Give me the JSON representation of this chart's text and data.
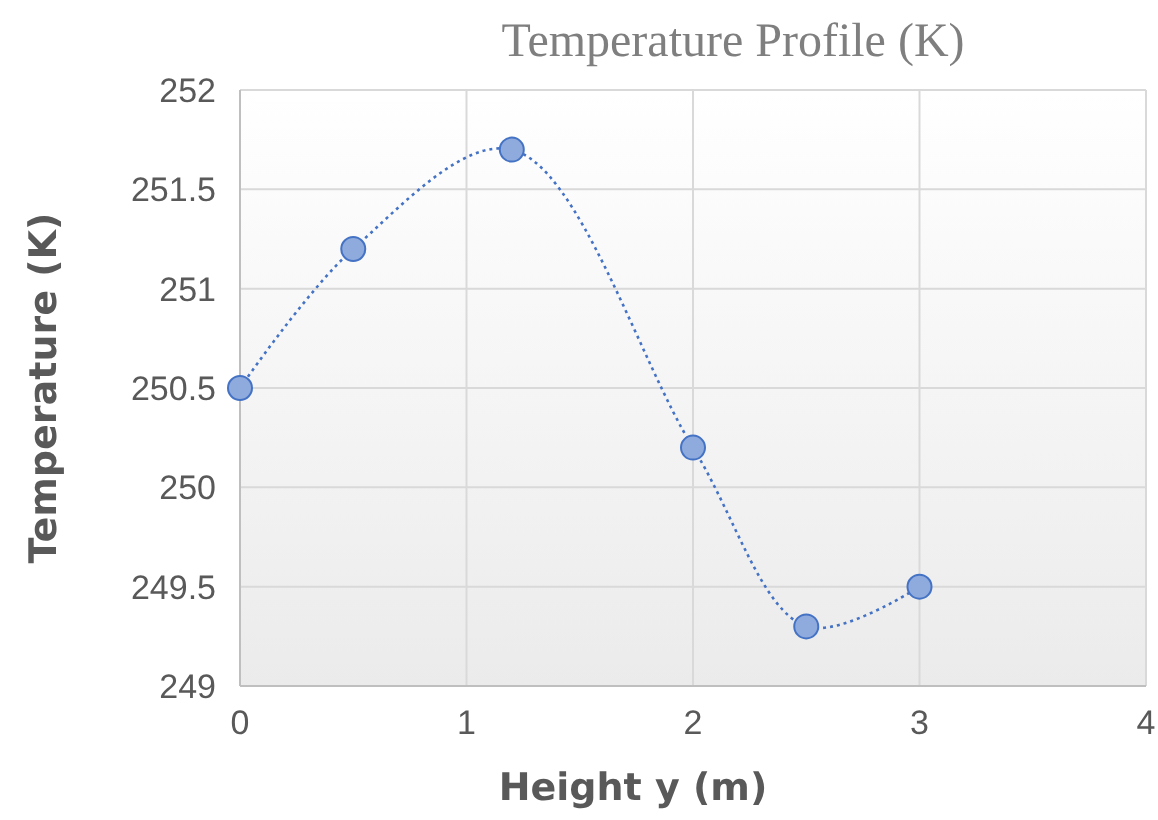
{
  "chart_data": {
    "type": "line",
    "title": "Temperature Profile (K)",
    "xlabel": "Height y (m)",
    "ylabel": "Temperature (K)",
    "x": [
      0,
      0.5,
      1.2,
      2,
      2.5,
      3
    ],
    "series": [
      {
        "color": "#4472c4",
        "values": [
          250.5,
          251.2,
          251.7,
          250.2,
          249.3,
          249.5
        ]
      }
    ],
    "xlim": [
      0,
      4
    ],
    "xticks": [
      0,
      1,
      2,
      3,
      4
    ],
    "ylim": [
      249,
      252
    ],
    "yticks": [
      249,
      249.5,
      250,
      250.5,
      251,
      251.5,
      252
    ],
    "grid": true,
    "marker": "circle",
    "line_style": "dotted"
  }
}
